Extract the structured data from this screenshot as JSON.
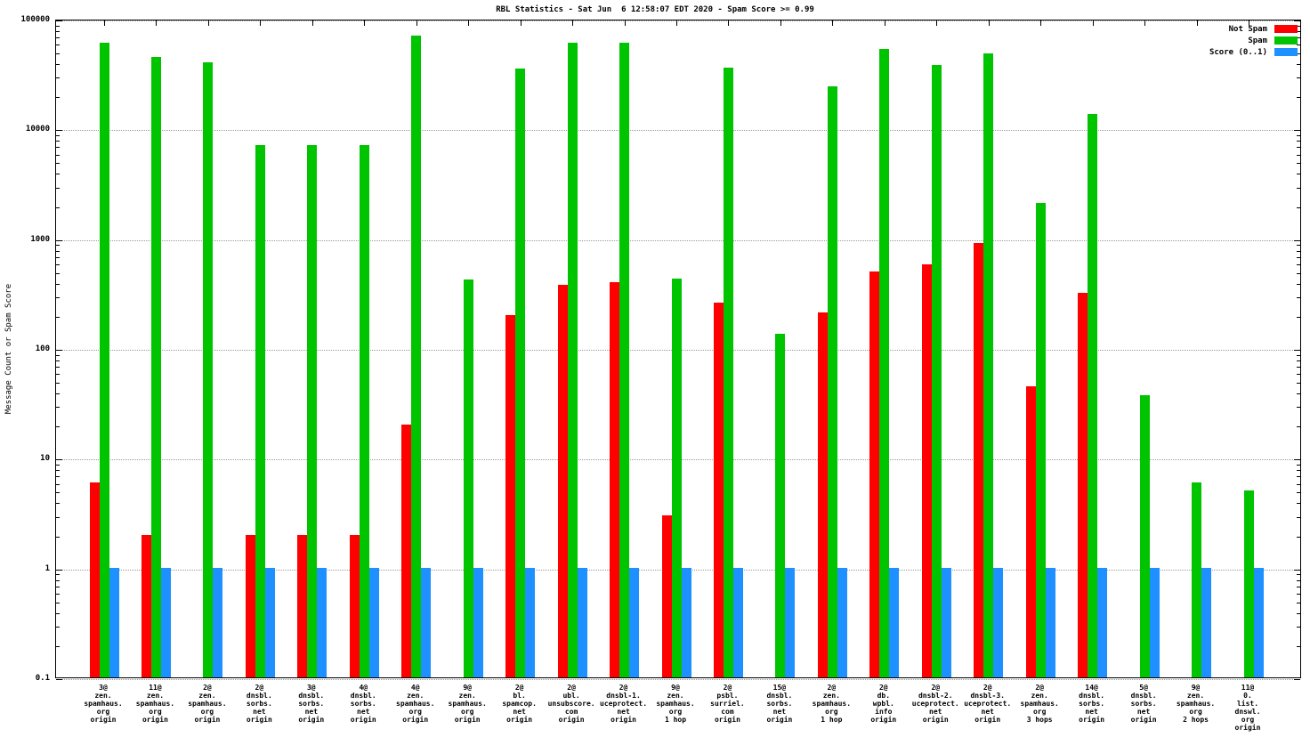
{
  "title": "RBL Statistics - Sat Jun  6 12:58:07 EDT 2020 - Spam Score >= 0.99",
  "ylabel": "Message Count or Spam Score",
  "legend": [
    {
      "label": "Not Spam",
      "color": "#ff0000"
    },
    {
      "label": "Spam",
      "color": "#00c400"
    },
    {
      "label": "Score (0..1)",
      "color": "#1e90ff"
    }
  ],
  "chart_data": {
    "type": "bar",
    "scale": "log",
    "title": "RBL Statistics - Sat Jun  6 12:58:07 EDT 2020 - Spam Score >= 0.99",
    "ylabel": "Message Count or Spam Score",
    "ylim": [
      0.1,
      100000
    ],
    "yticks": [
      0.1,
      1,
      10,
      100,
      1000,
      10000,
      100000
    ],
    "ytick_labels": [
      "0.1",
      "1",
      "10",
      "100",
      "1000",
      "10000",
      "100000"
    ],
    "grid": true,
    "legend_position": "top-right",
    "categories": [
      [
        "3@",
        "zen.",
        "spamhaus.",
        "org",
        "origin"
      ],
      [
        "11@",
        "zen.",
        "spamhaus.",
        "org",
        "origin"
      ],
      [
        "2@",
        "zen.",
        "spamhaus.",
        "org",
        "origin"
      ],
      [
        "2@",
        "dnsbl.",
        "sorbs.",
        "net",
        "origin"
      ],
      [
        "3@",
        "dnsbl.",
        "sorbs.",
        "net",
        "origin"
      ],
      [
        "4@",
        "dnsbl.",
        "sorbs.",
        "net",
        "origin"
      ],
      [
        "4@",
        "zen.",
        "spamhaus.",
        "org",
        "origin"
      ],
      [
        "9@",
        "zen.",
        "spamhaus.",
        "org",
        "origin"
      ],
      [
        "2@",
        "bl.",
        "spamcop.",
        "net",
        "origin"
      ],
      [
        "2@",
        "ubl.",
        "unsubscore.",
        "com",
        "origin"
      ],
      [
        "2@",
        "dnsbl-1.",
        "uceprotect.",
        "net",
        "origin"
      ],
      [
        "9@",
        "zen.",
        "spamhaus.",
        "org",
        "1 hop"
      ],
      [
        "2@",
        "psbl.",
        "surriel.",
        "com",
        "origin"
      ],
      [
        "15@",
        "dnsbl.",
        "sorbs.",
        "net",
        "origin"
      ],
      [
        "2@",
        "zen.",
        "spamhaus.",
        "org",
        "1 hop"
      ],
      [
        "2@",
        "db.",
        "wpbl.",
        "info",
        "origin"
      ],
      [
        "2@",
        "dnsbl-2.",
        "uceprotect.",
        "net",
        "origin"
      ],
      [
        "2@",
        "dnsbl-3.",
        "uceprotect.",
        "net",
        "origin"
      ],
      [
        "2@",
        "zen.",
        "spamhaus.",
        "org",
        "3 hops"
      ],
      [
        "14@",
        "dnsbl.",
        "sorbs.",
        "net",
        "origin"
      ],
      [
        "5@",
        "dnsbl.",
        "sorbs.",
        "net",
        "origin"
      ],
      [
        "9@",
        "zen.",
        "spamhaus.",
        "org",
        "2 hops"
      ],
      [
        "11@",
        "0.",
        "list.",
        "dnswl.",
        "org",
        "origin"
      ]
    ],
    "series": [
      {
        "name": "Not Spam",
        "color": "#ff0000",
        "values": [
          6,
          2,
          null,
          2,
          2,
          2,
          20,
          null,
          200,
          380,
          400,
          3,
          260,
          null,
          210,
          500,
          580,
          900,
          45,
          320,
          null,
          null,
          null
        ]
      },
      {
        "name": "Spam",
        "color": "#00c400",
        "values": [
          60000,
          45000,
          40000,
          7000,
          7000,
          7000,
          70000,
          420,
          35000,
          60000,
          60000,
          430,
          36000,
          135,
          24000,
          53000,
          38000,
          48000,
          2100,
          13500,
          37,
          6,
          5
        ]
      },
      {
        "name": "Score (0..1)",
        "color": "#1e90ff",
        "values": [
          1,
          1,
          1,
          1,
          1,
          1,
          1,
          1,
          1,
          1,
          1,
          1,
          1,
          1,
          1,
          1,
          1,
          1,
          1,
          1,
          1,
          1,
          1
        ]
      }
    ]
  }
}
